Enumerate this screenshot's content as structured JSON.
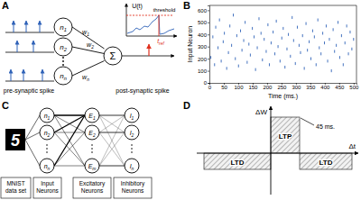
{
  "panel_labels": [
    "A",
    "B",
    "C",
    "D"
  ],
  "panel_a": {
    "input_neurons": [
      {
        "base": "n",
        "sub": "1"
      },
      {
        "base": "n",
        "sub": "2"
      },
      {
        "base": "n",
        "sub": "n"
      }
    ],
    "weights": [
      {
        "base": "w",
        "sub": "1"
      },
      {
        "base": "w",
        "sub": "2"
      },
      {
        "base": "w",
        "sub": "n"
      }
    ],
    "sum": "Σ",
    "potential_label": "U(t)",
    "threshold_label": "threshold",
    "refractory_label": {
      "base": "t",
      "sub": "ref"
    },
    "pre_label": "pre-synaptic spike",
    "post_label": "post-synaptic spike"
  },
  "chart_data": {
    "type": "scatter",
    "x": [
      5,
      12,
      18,
      22,
      30,
      35,
      41,
      48,
      52,
      60,
      66,
      71,
      77,
      83,
      90,
      95,
      101,
      108,
      113,
      119,
      124,
      131,
      137,
      142,
      149,
      155,
      160,
      166,
      172,
      179,
      184,
      190,
      197,
      203,
      208,
      214,
      221,
      227,
      232,
      238,
      245,
      251,
      256,
      262,
      269,
      274,
      281,
      287,
      292,
      298,
      305,
      311,
      316,
      323,
      329,
      335,
      340,
      346,
      352,
      358,
      364,
      370,
      376,
      381,
      387,
      393,
      399,
      405,
      410,
      416,
      423,
      429,
      434,
      440,
      446,
      452,
      458,
      464,
      470,
      476,
      482,
      488,
      494,
      500
    ],
    "values": [
      210,
      380,
      150,
      460,
      290,
      520,
      180,
      340,
      410,
      120,
      250,
      470,
      310,
      560,
      200,
      390,
      140,
      430,
      270,
      350,
      500,
      170,
      320,
      230,
      450,
      380,
      110,
      290,
      530,
      410,
      190,
      360,
      260,
      480,
      150,
      330,
      420,
      240,
      510,
      300,
      180,
      370,
      450,
      130,
      280,
      400,
      220,
      540,
      350,
      160,
      460,
      310,
      250,
      390,
      120,
      490,
      270,
      340,
      200,
      430,
      380,
      150,
      520,
      290,
      240,
      410,
      330,
      470,
      180,
      360,
      100,
      440,
      260,
      310,
      500,
      210,
      390,
      150,
      330,
      470,
      240,
      420,
      280,
      360
    ],
    "color": "#2f62b8",
    "marker": "vline",
    "xlim": [
      0,
      510
    ],
    "ylim": [
      0,
      640
    ],
    "xticks": [
      0,
      50,
      100,
      150,
      200,
      250,
      300,
      350,
      400,
      450,
      500
    ],
    "yticks": [
      0,
      100,
      200,
      300,
      400,
      500,
      600
    ],
    "xlabel": "Time (ms.)",
    "ylabel": "Input Neuron"
  },
  "panel_c": {
    "digit": "5",
    "input_neurons": [
      {
        "base": "n",
        "sub": "1"
      },
      {
        "base": "n",
        "sub": "2"
      },
      {
        "base": "n",
        "sub": "n"
      }
    ],
    "excitatory_neurons": [
      {
        "base": "E",
        "sub": "1"
      },
      {
        "base": "E",
        "sub": "2"
      },
      {
        "base": "E",
        "sub": "m"
      }
    ],
    "inhibitory_neurons": [
      {
        "base": "I",
        "sub": "1"
      },
      {
        "base": "I",
        "sub": "2"
      },
      {
        "base": "I",
        "sub": "n"
      }
    ],
    "captions": [
      [
        "MNIST",
        "data set"
      ],
      [
        "Input",
        "Neurons"
      ],
      [
        "Excitatory",
        "Neurons"
      ],
      [
        "Inhibitory",
        "Neurons"
      ]
    ]
  },
  "panel_d": {
    "y_label": "ΔW",
    "x_label": "Δt",
    "ltp_label": "LTP",
    "ltd_labels": [
      "LTD",
      "LTD"
    ],
    "window_label": "45 ms."
  }
}
